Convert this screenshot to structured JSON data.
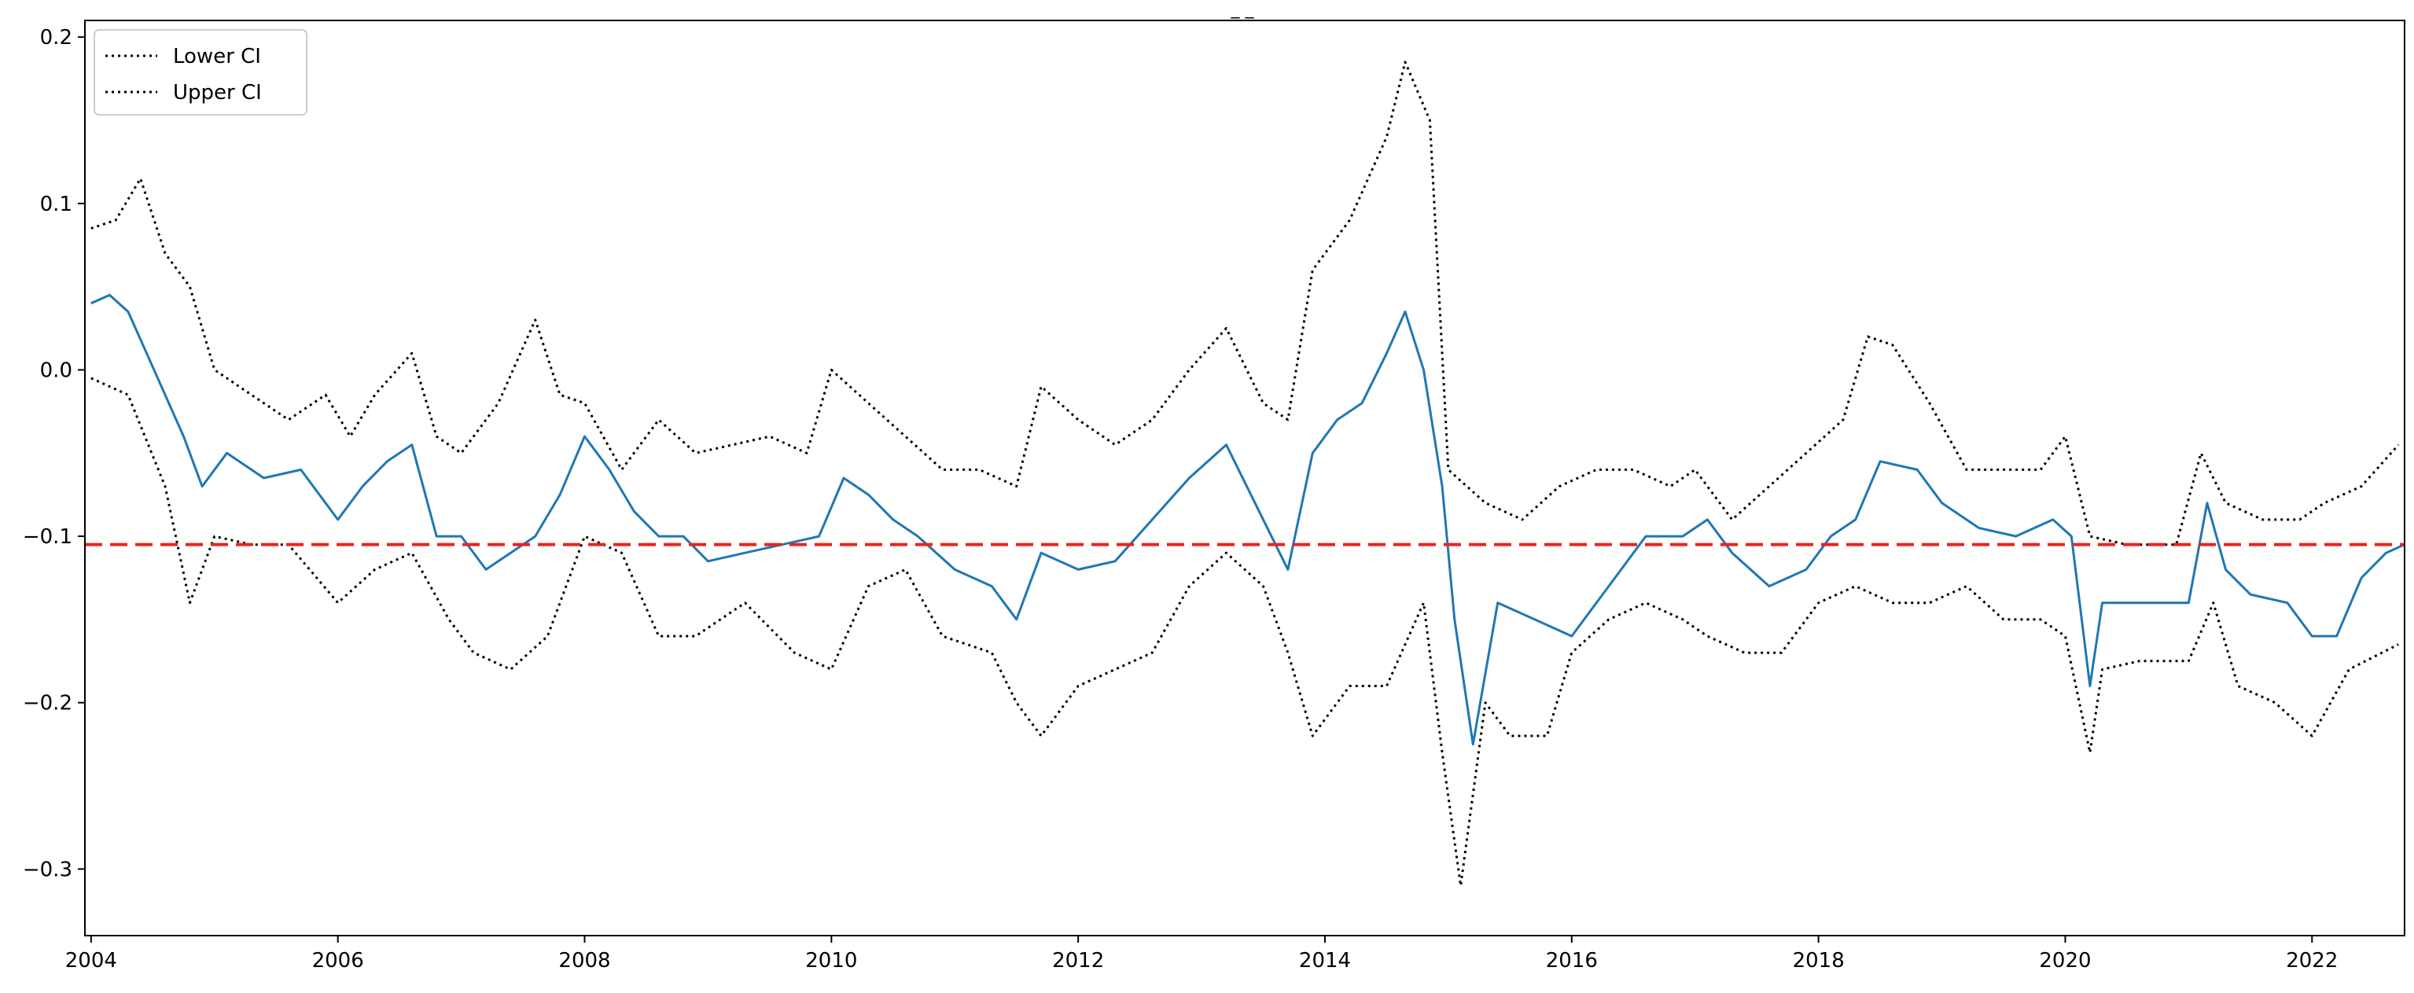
{
  "chart_data": {
    "type": "line",
    "title": "_ _",
    "xlabel": "",
    "ylabel": "",
    "xlim": [
      2003.95,
      2022.75
    ],
    "ylim": [
      -0.34,
      0.21
    ],
    "x_ticks": [
      2004,
      2006,
      2008,
      2010,
      2012,
      2014,
      2016,
      2018,
      2020,
      2022
    ],
    "x_tick_labels": [
      "2004",
      "2006",
      "2008",
      "2010",
      "2012",
      "2014",
      "2016",
      "2018",
      "2020",
      "2022"
    ],
    "y_ticks": [
      -0.3,
      -0.2,
      -0.1,
      0.0,
      0.1,
      0.2
    ],
    "y_tick_labels": [
      "−0.3",
      "−0.2",
      "−0.1",
      "0.0",
      "0.1",
      "0.2"
    ],
    "grid": false,
    "legend": {
      "placement": "top-left",
      "entries": [
        "Lower CI",
        "Upper CI"
      ]
    },
    "reference_line": {
      "y": -0.105,
      "color": "#e8251f",
      "style": "dashed"
    },
    "series": [
      {
        "name": "Lower CI",
        "color": "#000000",
        "style": "dotted",
        "x": [
          2004.0,
          2004.3,
          2004.6,
          2004.8,
          2005.0,
          2005.3,
          2005.6,
          2006.0,
          2006.3,
          2006.6,
          2006.9,
          2007.1,
          2007.4,
          2007.7,
          2008.0,
          2008.3,
          2008.6,
          2008.9,
          2009.3,
          2009.7,
          2010.0,
          2010.3,
          2010.6,
          2010.9,
          2011.3,
          2011.5,
          2011.7,
          2012.0,
          2012.3,
          2012.6,
          2012.9,
          2013.2,
          2013.5,
          2013.7,
          2013.9,
          2014.2,
          2014.5,
          2014.8,
          2014.95,
          2015.1,
          2015.3,
          2015.5,
          2015.8,
          2016.0,
          2016.3,
          2016.6,
          2016.9,
          2017.1,
          2017.4,
          2017.7,
          2018.0,
          2018.3,
          2018.6,
          2018.9,
          2019.2,
          2019.5,
          2019.8,
          2020.0,
          2020.2,
          2020.3,
          2020.6,
          2021.0,
          2021.2,
          2021.4,
          2021.7,
          2022.0,
          2022.3,
          2022.7
        ],
        "y": [
          -0.005,
          -0.015,
          -0.07,
          -0.14,
          -0.1,
          -0.105,
          -0.105,
          -0.14,
          -0.12,
          -0.11,
          -0.15,
          -0.17,
          -0.18,
          -0.16,
          -0.1,
          -0.11,
          -0.16,
          -0.16,
          -0.14,
          -0.17,
          -0.18,
          -0.13,
          -0.12,
          -0.16,
          -0.17,
          -0.2,
          -0.22,
          -0.19,
          -0.18,
          -0.17,
          -0.13,
          -0.11,
          -0.13,
          -0.17,
          -0.22,
          -0.19,
          -0.19,
          -0.14,
          -0.23,
          -0.31,
          -0.2,
          -0.22,
          -0.22,
          -0.17,
          -0.15,
          -0.14,
          -0.15,
          -0.16,
          -0.17,
          -0.17,
          -0.14,
          -0.13,
          -0.14,
          -0.14,
          -0.13,
          -0.15,
          -0.15,
          -0.16,
          -0.23,
          -0.18,
          -0.175,
          -0.175,
          -0.14,
          -0.19,
          -0.2,
          -0.22,
          -0.18,
          -0.165
        ]
      },
      {
        "name": "Upper CI",
        "color": "#000000",
        "style": "dotted",
        "x": [
          2004.0,
          2004.2,
          2004.4,
          2004.6,
          2004.8,
          2005.0,
          2005.3,
          2005.6,
          2005.9,
          2006.1,
          2006.3,
          2006.6,
          2006.8,
          2007.0,
          2007.3,
          2007.6,
          2007.8,
          2008.0,
          2008.3,
          2008.6,
          2008.9,
          2009.2,
          2009.5,
          2009.8,
          2010.0,
          2010.3,
          2010.6,
          2010.9,
          2011.2,
          2011.5,
          2011.7,
          2012.0,
          2012.3,
          2012.6,
          2012.9,
          2013.2,
          2013.5,
          2013.7,
          2013.9,
          2014.2,
          2014.5,
          2014.65,
          2014.85,
          2015.0,
          2015.3,
          2015.6,
          2015.9,
          2016.2,
          2016.5,
          2016.8,
          2017.0,
          2017.3,
          2017.6,
          2017.9,
          2018.2,
          2018.4,
          2018.6,
          2018.9,
          2019.2,
          2019.5,
          2019.8,
          2020.0,
          2020.2,
          2020.5,
          2020.9,
          2021.1,
          2021.3,
          2021.6,
          2021.9,
          2022.1,
          2022.4,
          2022.7
        ],
        "y": [
          0.085,
          0.09,
          0.115,
          0.07,
          0.05,
          0.0,
          -0.015,
          -0.03,
          -0.015,
          -0.04,
          -0.015,
          0.01,
          -0.04,
          -0.05,
          -0.02,
          0.03,
          -0.015,
          -0.02,
          -0.06,
          -0.03,
          -0.05,
          -0.045,
          -0.04,
          -0.05,
          0.0,
          -0.02,
          -0.04,
          -0.06,
          -0.06,
          -0.07,
          -0.01,
          -0.03,
          -0.045,
          -0.03,
          0.0,
          0.025,
          -0.02,
          -0.03,
          0.06,
          0.09,
          0.14,
          0.185,
          0.15,
          -0.06,
          -0.08,
          -0.09,
          -0.07,
          -0.06,
          -0.06,
          -0.07,
          -0.06,
          -0.09,
          -0.07,
          -0.05,
          -0.03,
          0.02,
          0.015,
          -0.02,
          -0.06,
          -0.06,
          -0.06,
          -0.04,
          -0.1,
          -0.105,
          -0.105,
          -0.05,
          -0.08,
          -0.09,
          -0.09,
          -0.08,
          -0.07,
          -0.045
        ]
      },
      {
        "name": "",
        "color": "#1f77b4",
        "style": "solid",
        "x": [
          2004.0,
          2004.15,
          2004.3,
          2004.45,
          2004.6,
          2004.75,
          2004.9,
          2005.1,
          2005.4,
          2005.7,
          2006.0,
          2006.2,
          2006.4,
          2006.6,
          2006.8,
          2007.0,
          2007.2,
          2007.4,
          2007.6,
          2007.8,
          2008.0,
          2008.2,
          2008.4,
          2008.6,
          2008.8,
          2009.0,
          2009.3,
          2009.6,
          2009.9,
          2010.1,
          2010.3,
          2010.5,
          2010.7,
          2011.0,
          2011.3,
          2011.5,
          2011.7,
          2012.0,
          2012.3,
          2012.6,
          2012.9,
          2013.2,
          2013.5,
          2013.7,
          2013.9,
          2014.1,
          2014.3,
          2014.5,
          2014.65,
          2014.8,
          2014.95,
          2015.05,
          2015.2,
          2015.4,
          2015.7,
          2016.0,
          2016.3,
          2016.6,
          2016.9,
          2017.1,
          2017.3,
          2017.6,
          2017.9,
          2018.1,
          2018.3,
          2018.5,
          2018.8,
          2019.0,
          2019.3,
          2019.6,
          2019.9,
          2020.05,
          2020.2,
          2020.3,
          2020.6,
          2021.0,
          2021.15,
          2021.3,
          2021.5,
          2021.8,
          2022.0,
          2022.2,
          2022.4,
          2022.6,
          2022.75
        ],
        "y": [
          0.04,
          0.045,
          0.035,
          0.01,
          -0.015,
          -0.04,
          -0.07,
          -0.05,
          -0.065,
          -0.06,
          -0.09,
          -0.07,
          -0.055,
          -0.045,
          -0.1,
          -0.1,
          -0.12,
          -0.11,
          -0.1,
          -0.075,
          -0.04,
          -0.06,
          -0.085,
          -0.1,
          -0.1,
          -0.115,
          -0.11,
          -0.105,
          -0.1,
          -0.065,
          -0.075,
          -0.09,
          -0.1,
          -0.12,
          -0.13,
          -0.15,
          -0.11,
          -0.12,
          -0.115,
          -0.09,
          -0.065,
          -0.045,
          -0.09,
          -0.12,
          -0.05,
          -0.03,
          -0.02,
          0.01,
          0.035,
          0.0,
          -0.07,
          -0.15,
          -0.225,
          -0.14,
          -0.15,
          -0.16,
          -0.13,
          -0.1,
          -0.1,
          -0.09,
          -0.11,
          -0.13,
          -0.12,
          -0.1,
          -0.09,
          -0.055,
          -0.06,
          -0.08,
          -0.095,
          -0.1,
          -0.09,
          -0.1,
          -0.19,
          -0.14,
          -0.14,
          -0.14,
          -0.08,
          -0.12,
          -0.135,
          -0.14,
          -0.16,
          -0.16,
          -0.125,
          -0.11,
          -0.105
        ]
      }
    ]
  }
}
